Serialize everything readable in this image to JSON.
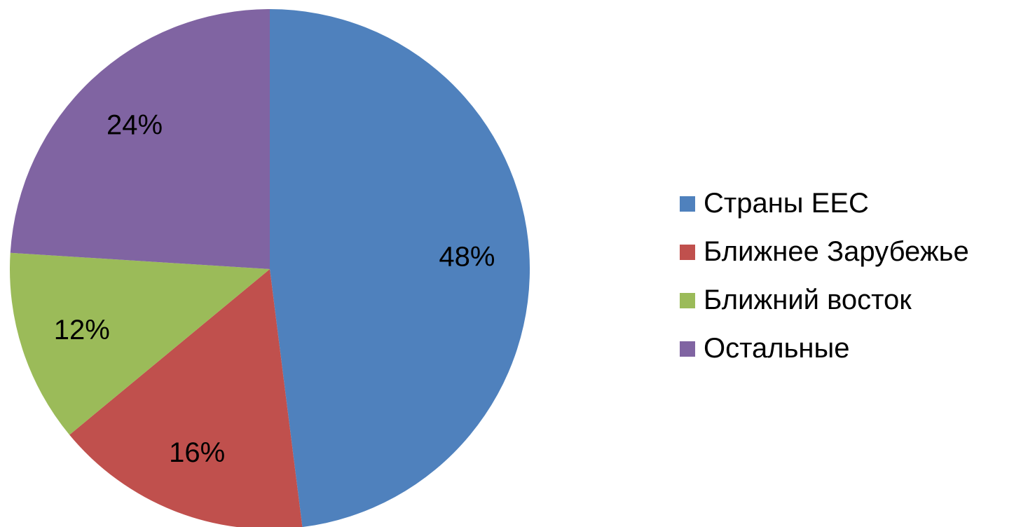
{
  "chart_data": {
    "type": "pie",
    "title": "",
    "categories": [
      "Страны ЕЕС",
      "Ближнее Зарубежье",
      "Ближний восток",
      "Остальные"
    ],
    "values": [
      48,
      16,
      12,
      24
    ],
    "labels": [
      "48%",
      "16%",
      "12%",
      "24%"
    ],
    "colors": [
      "#4F81BD",
      "#C0504D",
      "#9BBB59",
      "#8064A2"
    ],
    "start_angle_deg": 0,
    "direction": "clockwise",
    "legend_position": "right"
  }
}
